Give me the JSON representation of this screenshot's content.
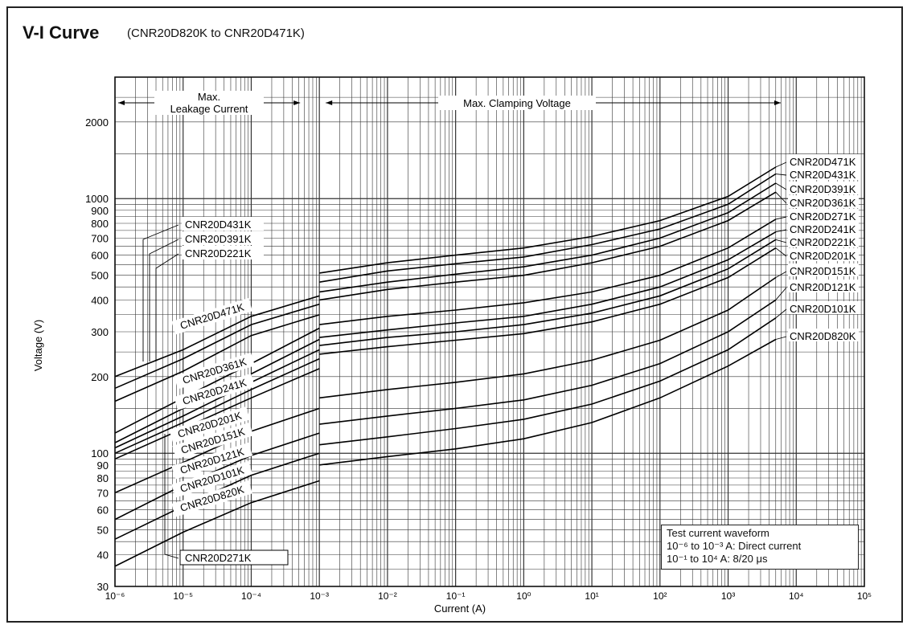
{
  "chart_data": {
    "type": "line",
    "title": "V-I Curve",
    "subtitle": "(CNR20D820K to CNR20D471K)",
    "xlabel": "Current (A)",
    "ylabel": "Voltage (V)",
    "xscale": "log",
    "yscale": "log",
    "xlim": [
      1e-06,
      100000
    ],
    "ylim": [
      30,
      3000
    ],
    "x_tick_labels": [
      "10⁻⁶",
      "10⁻⁵",
      "10⁻⁴",
      "10⁻³",
      "10⁻²",
      "10⁻¹",
      "10⁰",
      "10¹",
      "10²",
      "10³",
      "10⁴",
      "10⁵"
    ],
    "x_tick_values": [
      1e-06,
      1e-05,
      0.0001,
      0.001,
      0.01,
      0.1,
      1,
      10,
      100,
      1000,
      10000,
      100000
    ],
    "y_tick_labels": [
      "30",
      "40",
      "50",
      "60",
      "70",
      "80",
      "90",
      "100",
      "200",
      "300",
      "400",
      "500",
      "600",
      "700",
      "800",
      "900",
      "1000",
      "2000"
    ],
    "y_tick_values": [
      30,
      40,
      50,
      60,
      70,
      80,
      90,
      100,
      200,
      300,
      400,
      500,
      600,
      700,
      800,
      900,
      1000,
      2000
    ],
    "grid": true,
    "region_labels": {
      "leakage_line1": "Max.",
      "leakage_line2": "Leakage Current",
      "clamping": "Max. Clamping Voltage"
    },
    "leakage_boundary_x": 0.001,
    "note": {
      "line1": "Test current waveform",
      "line2": "10⁻⁶ to 10⁻³ A: Direct current",
      "line3": "10⁻¹ to 10⁴ A:  8/20 μs"
    },
    "series": [
      {
        "name": "CNR20D471K",
        "leakage": [
          [
            1e-06,
            200
          ],
          [
            1e-05,
            255
          ],
          [
            0.0001,
            345
          ],
          [
            0.001,
            415
          ]
        ],
        "clamping": [
          [
            0.001,
            510
          ],
          [
            0.01,
            560
          ],
          [
            0.1,
            600
          ],
          [
            1,
            640
          ],
          [
            10,
            710
          ],
          [
            100,
            820
          ],
          [
            1000,
            1020
          ],
          [
            5000,
            1330
          ]
        ]
      },
      {
        "name": "CNR20D431K",
        "leakage": [
          [
            1e-06,
            180
          ],
          [
            1e-05,
            235
          ],
          [
            0.0001,
            320
          ],
          [
            0.001,
            385
          ]
        ],
        "clamping": [
          [
            0.001,
            470
          ],
          [
            0.01,
            520
          ],
          [
            0.1,
            555
          ],
          [
            1,
            590
          ],
          [
            10,
            660
          ],
          [
            100,
            760
          ],
          [
            1000,
            950
          ],
          [
            5000,
            1250
          ]
        ]
      },
      {
        "name": "CNR20D391K",
        "leakage": [
          [
            1e-06,
            160
          ],
          [
            1e-05,
            210
          ],
          [
            0.0001,
            290
          ],
          [
            0.001,
            350
          ]
        ],
        "clamping": [
          [
            0.001,
            430
          ],
          [
            0.01,
            470
          ],
          [
            0.1,
            505
          ],
          [
            1,
            540
          ],
          [
            10,
            600
          ],
          [
            100,
            700
          ],
          [
            1000,
            880
          ],
          [
            5000,
            1150
          ]
        ]
      },
      {
        "name": "CNR20D361K",
        "leakage": [
          [
            1e-06,
            120
          ],
          [
            1e-05,
            165
          ],
          [
            0.0001,
            225
          ],
          [
            0.001,
            310
          ]
        ],
        "clamping": [
          [
            0.001,
            400
          ],
          [
            0.01,
            440
          ],
          [
            0.1,
            470
          ],
          [
            1,
            500
          ],
          [
            10,
            560
          ],
          [
            100,
            650
          ],
          [
            1000,
            820
          ],
          [
            5000,
            1060
          ]
        ]
      },
      {
        "name": "CNR20D271K",
        "leakage": [
          [
            1e-06,
            110
          ],
          [
            1e-05,
            150
          ],
          [
            0.0001,
            205
          ],
          [
            0.001,
            280
          ]
        ],
        "clamping": [
          [
            0.001,
            320
          ],
          [
            0.01,
            345
          ],
          [
            0.1,
            365
          ],
          [
            1,
            390
          ],
          [
            10,
            430
          ],
          [
            100,
            500
          ],
          [
            1000,
            640
          ],
          [
            5000,
            830
          ]
        ]
      },
      {
        "name": "CNR20D241K",
        "leakage": [
          [
            1e-06,
            105
          ],
          [
            1e-05,
            140
          ],
          [
            0.0001,
            190
          ],
          [
            0.001,
            255
          ]
        ],
        "clamping": [
          [
            0.001,
            285
          ],
          [
            0.01,
            305
          ],
          [
            0.1,
            325
          ],
          [
            1,
            345
          ],
          [
            10,
            385
          ],
          [
            100,
            450
          ],
          [
            1000,
            575
          ],
          [
            5000,
            740
          ]
        ]
      },
      {
        "name": "CNR20D221K",
        "leakage": [
          [
            1e-06,
            100
          ],
          [
            1e-05,
            132
          ],
          [
            0.0001,
            178
          ],
          [
            0.001,
            235
          ]
        ],
        "clamping": [
          [
            0.001,
            265
          ],
          [
            0.01,
            285
          ],
          [
            0.1,
            300
          ],
          [
            1,
            320
          ],
          [
            10,
            355
          ],
          [
            100,
            415
          ],
          [
            1000,
            530
          ],
          [
            5000,
            690
          ]
        ]
      },
      {
        "name": "CNR20D201K",
        "leakage": [
          [
            1e-06,
            95
          ],
          [
            1e-05,
            125
          ],
          [
            0.0001,
            165
          ],
          [
            0.001,
            215
          ]
        ],
        "clamping": [
          [
            0.001,
            245
          ],
          [
            0.01,
            262
          ],
          [
            0.1,
            278
          ],
          [
            1,
            295
          ],
          [
            10,
            328
          ],
          [
            100,
            385
          ],
          [
            1000,
            490
          ],
          [
            5000,
            640
          ]
        ]
      },
      {
        "name": "CNR20D151K",
        "leakage": [
          [
            1e-06,
            70
          ],
          [
            1e-05,
            92
          ],
          [
            0.0001,
            122
          ],
          [
            0.001,
            150
          ]
        ],
        "clamping": [
          [
            0.001,
            165
          ],
          [
            0.01,
            178
          ],
          [
            0.1,
            190
          ],
          [
            1,
            205
          ],
          [
            10,
            232
          ],
          [
            100,
            278
          ],
          [
            1000,
            365
          ],
          [
            5000,
            490
          ]
        ]
      },
      {
        "name": "CNR20D121K",
        "leakage": [
          [
            1e-06,
            55
          ],
          [
            1e-05,
            75
          ],
          [
            0.0001,
            98
          ],
          [
            0.001,
            120
          ]
        ],
        "clamping": [
          [
            0.001,
            130
          ],
          [
            0.01,
            140
          ],
          [
            0.1,
            150
          ],
          [
            1,
            162
          ],
          [
            10,
            185
          ],
          [
            100,
            225
          ],
          [
            1000,
            300
          ],
          [
            5000,
            400
          ]
        ]
      },
      {
        "name": "CNR20D101K",
        "leakage": [
          [
            1e-06,
            46
          ],
          [
            1e-05,
            62
          ],
          [
            0.0001,
            82
          ],
          [
            0.001,
            100
          ]
        ],
        "clamping": [
          [
            0.001,
            108
          ],
          [
            0.01,
            116
          ],
          [
            0.1,
            125
          ],
          [
            1,
            136
          ],
          [
            10,
            156
          ],
          [
            100,
            192
          ],
          [
            1000,
            255
          ],
          [
            5000,
            340
          ]
        ]
      },
      {
        "name": "CNR20D820K",
        "leakage": [
          [
            1e-06,
            36
          ],
          [
            1e-05,
            49
          ],
          [
            0.0001,
            64
          ],
          [
            0.001,
            78
          ]
        ],
        "clamping": [
          [
            0.001,
            90
          ],
          [
            0.01,
            97
          ],
          [
            0.1,
            104
          ],
          [
            1,
            114
          ],
          [
            10,
            132
          ],
          [
            100,
            165
          ],
          [
            1000,
            220
          ],
          [
            5000,
            280
          ]
        ]
      }
    ]
  }
}
